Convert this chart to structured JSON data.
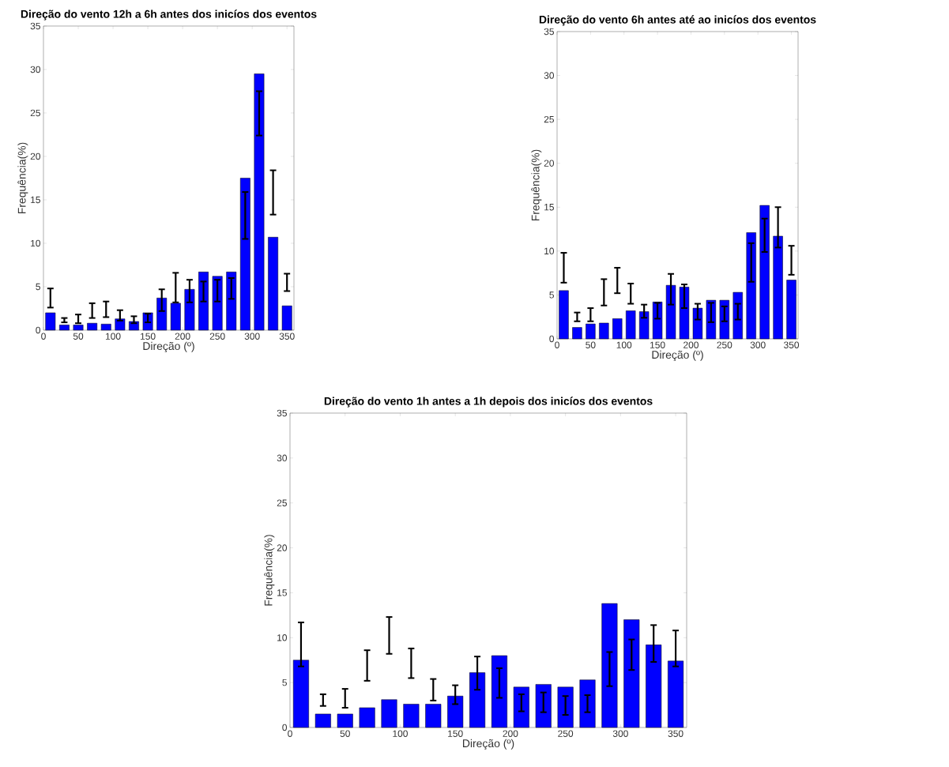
{
  "chart_data": [
    {
      "type": "bar",
      "title": "Direção do vento 12h a 6h antes dos inicíos dos eventos",
      "xlabel": "Direção (º)",
      "ylabel": "Frequência(%)",
      "x": [
        10,
        30,
        50,
        70,
        90,
        110,
        130,
        150,
        170,
        190,
        210,
        230,
        250,
        270,
        290,
        310,
        330,
        350
      ],
      "values": [
        2.0,
        0.6,
        0.6,
        0.8,
        0.7,
        1.3,
        1.0,
        2.0,
        3.7,
        3.1,
        4.7,
        6.7,
        6.2,
        6.7,
        17.5,
        29.5,
        10.7,
        2.8
      ],
      "errors": [
        [
          2.6,
          4.8
        ],
        [
          0.9,
          1.4
        ],
        [
          0.8,
          1.8
        ],
        [
          1.4,
          3.1
        ],
        [
          1.5,
          3.3
        ],
        [
          1.1,
          2.3
        ],
        [
          0.8,
          1.6
        ],
        [
          0.9,
          1.9
        ],
        [
          2.2,
          4.7
        ],
        [
          3.2,
          6.6
        ],
        [
          3.2,
          5.8
        ],
        [
          3.3,
          5.6
        ],
        [
          3.3,
          5.8
        ],
        [
          3.6,
          6.0
        ],
        [
          10.5,
          15.9
        ],
        [
          22.4,
          27.5
        ],
        [
          13.3,
          18.4
        ],
        [
          4.5,
          6.5
        ]
      ],
      "color": "#0000ff",
      "xlim": [
        0,
        360
      ],
      "ylim": [
        0,
        35
      ],
      "xticks": [
        0,
        50,
        100,
        150,
        200,
        250,
        300,
        350
      ],
      "yticks": [
        0,
        5,
        10,
        15,
        20,
        25,
        30,
        35
      ]
    },
    {
      "type": "bar",
      "title": "Direção do vento 6h antes até ao inicíos dos eventos",
      "xlabel": "Direção (º)",
      "ylabel": "Frequência(%)",
      "x": [
        10,
        30,
        50,
        70,
        90,
        110,
        130,
        150,
        170,
        190,
        210,
        230,
        250,
        270,
        290,
        310,
        330,
        350
      ],
      "values": [
        5.5,
        1.3,
        1.7,
        1.8,
        2.3,
        3.2,
        3.1,
        4.2,
        6.1,
        5.9,
        3.5,
        4.4,
        4.4,
        5.3,
        12.1,
        15.2,
        11.7,
        6.7
      ],
      "errors": [
        [
          6.4,
          9.8
        ],
        [
          2.0,
          3.0
        ],
        [
          2.0,
          3.5
        ],
        [
          3.8,
          6.8
        ],
        [
          5.2,
          8.1
        ],
        [
          4.0,
          6.3
        ],
        [
          2.4,
          3.9
        ],
        [
          2.3,
          4.1
        ],
        [
          3.9,
          7.4
        ],
        [
          3.5,
          6.2
        ],
        [
          2.2,
          4.0
        ],
        [
          1.9,
          4.1
        ],
        [
          2.0,
          3.7
        ],
        [
          2.2,
          4.0
        ],
        [
          6.5,
          10.9
        ],
        [
          9.9,
          13.7
        ],
        [
          10.4,
          15.0
        ],
        [
          7.3,
          10.6
        ]
      ],
      "color": "#0000ff",
      "xlim": [
        0,
        360
      ],
      "ylim": [
        0,
        35
      ],
      "xticks": [
        0,
        50,
        100,
        150,
        200,
        250,
        300,
        350
      ],
      "yticks": [
        0,
        5,
        10,
        15,
        20,
        25,
        30,
        35
      ]
    },
    {
      "type": "bar",
      "title": "Direção do vento 1h antes a 1h depois dos inicíos dos eventos",
      "xlabel": "Direção (º)",
      "ylabel": "Frequência(%)",
      "x": [
        10,
        30,
        50,
        70,
        90,
        110,
        130,
        150,
        170,
        190,
        210,
        230,
        250,
        270,
        290,
        310,
        330,
        350
      ],
      "values": [
        7.5,
        1.5,
        1.5,
        2.2,
        3.1,
        2.6,
        2.6,
        3.5,
        6.1,
        8.0,
        4.5,
        4.8,
        4.5,
        5.3,
        13.8,
        12.0,
        9.2,
        7.4
      ],
      "errors": [
        [
          6.8,
          11.7
        ],
        [
          2.4,
          3.7
        ],
        [
          2.2,
          4.3
        ],
        [
          5.2,
          8.6
        ],
        [
          8.2,
          12.3
        ],
        [
          5.5,
          8.8
        ],
        [
          3.0,
          5.4
        ],
        [
          2.6,
          4.7
        ],
        [
          4.2,
          7.9
        ],
        [
          3.3,
          6.6
        ],
        [
          1.8,
          3.7
        ],
        [
          1.7,
          3.9
        ],
        [
          1.4,
          3.5
        ],
        [
          1.7,
          3.6
        ],
        [
          4.6,
          8.4
        ],
        [
          6.4,
          9.8
        ],
        [
          7.3,
          11.4
        ],
        [
          6.8,
          10.8
        ]
      ],
      "color": "#0000ff",
      "xlim": [
        0,
        360
      ],
      "ylim": [
        0,
        35
      ],
      "xticks": [
        0,
        50,
        100,
        150,
        200,
        250,
        300,
        350
      ],
      "yticks": [
        0,
        5,
        10,
        15,
        20,
        25,
        30,
        35
      ]
    }
  ]
}
